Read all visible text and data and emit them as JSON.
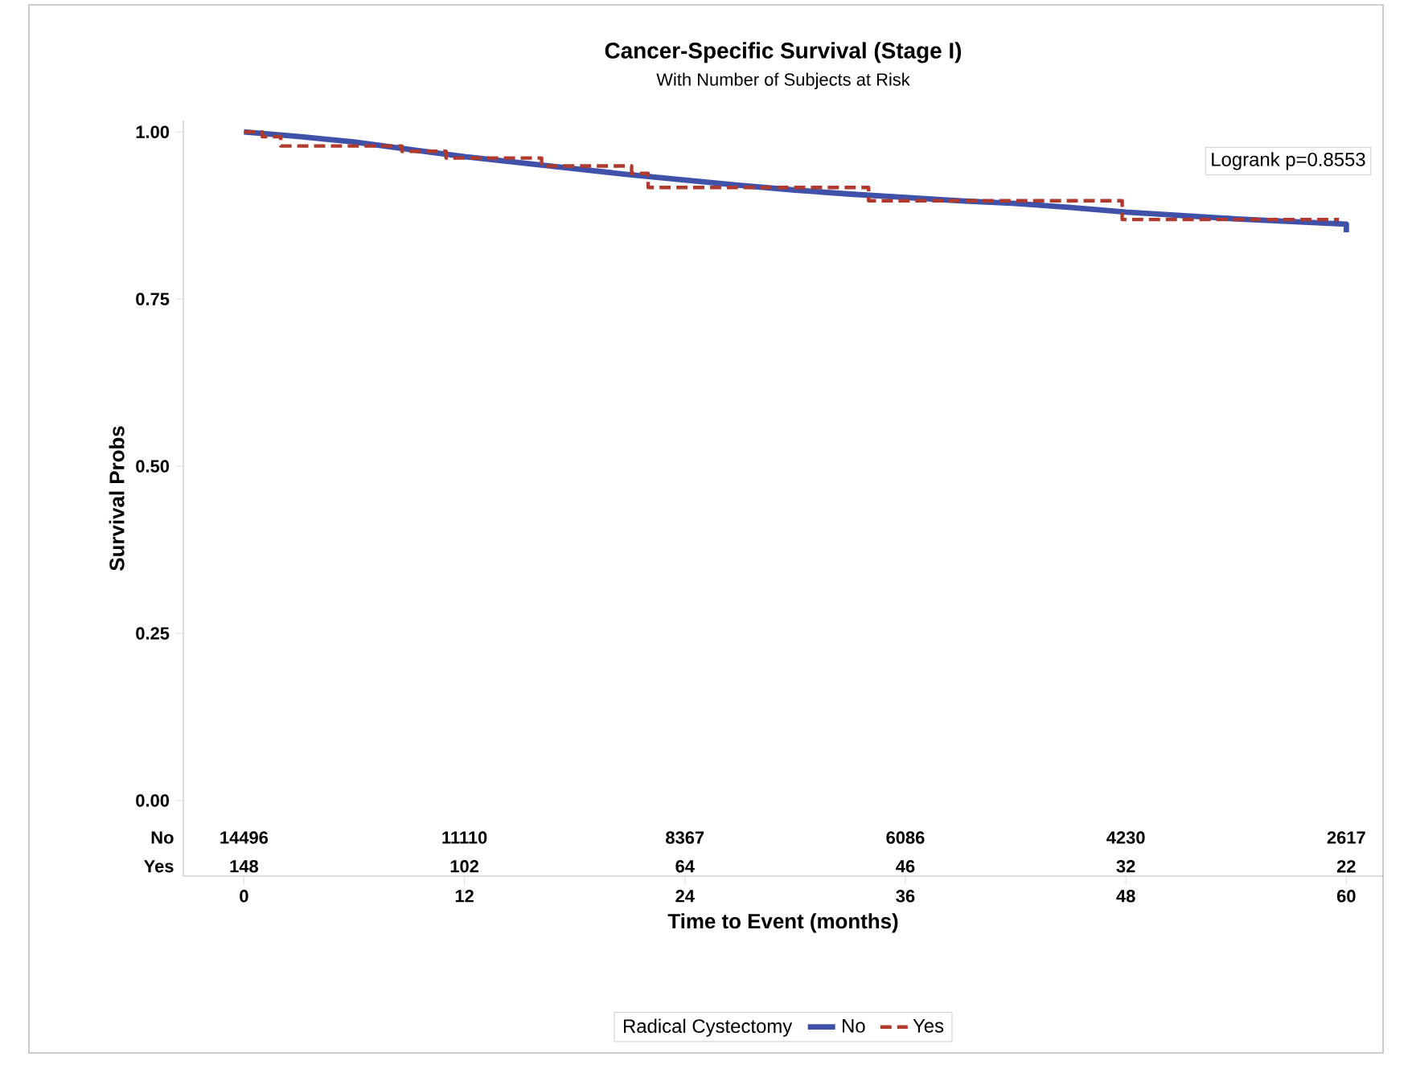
{
  "chart_data": {
    "type": "step",
    "title": "Cancer-Specific Survival (Stage I)",
    "subtitle": "With Number of Subjects at Risk",
    "xlabel": "Time to Event (months)",
    "ylabel": "Survival Probs",
    "legend_title": "Radical Cystectomy",
    "legend": "bottom",
    "grid": false,
    "xlim": [
      -3.3,
      62
    ],
    "ylim": [
      -0.113,
      1.017
    ],
    "xticks": [
      0,
      12,
      24,
      36,
      48,
      60
    ],
    "yticks": [
      {
        "value": 0,
        "label": "0.00"
      },
      {
        "value": 0.25,
        "label": "0.25"
      },
      {
        "value": 0.5,
        "label": "0.50"
      },
      {
        "value": 0.75,
        "label": "0.75"
      },
      {
        "value": 1,
        "label": "1.00"
      }
    ],
    "series": [
      {
        "name": "No",
        "type": "line",
        "color": "#3f51a8",
        "line_style": "solid",
        "x": [
          0,
          3,
          6,
          9,
          12,
          15,
          18,
          21,
          24,
          27,
          30,
          33,
          36,
          39,
          42,
          45,
          48,
          51,
          54,
          57,
          60,
          60
        ],
        "values": [
          1.0,
          0.993,
          0.985,
          0.974,
          0.963,
          0.954,
          0.945,
          0.936,
          0.928,
          0.92,
          0.913,
          0.907,
          0.902,
          0.897,
          0.893,
          0.887,
          0.88,
          0.875,
          0.87,
          0.866,
          0.862,
          0.85
        ]
      },
      {
        "name": "Yes",
        "color": "#b03a2e",
        "line_style": "dashed",
        "x": [
          0,
          1,
          2,
          8.6,
          11,
          16.2,
          21.1,
          22,
          34,
          47.8,
          59.6
        ],
        "values": [
          1.0,
          0.993,
          0.979,
          0.971,
          0.961,
          0.949,
          0.938,
          0.917,
          0.897,
          0.869,
          0.869
        ]
      }
    ],
    "annotations": [
      "No",
      "14496",
      "11110",
      "8367",
      "6086",
      "4230",
      "2617",
      "Yes",
      "148",
      "102",
      "64",
      "46",
      "32",
      "22",
      "Logrank p=0.8553"
    ]
  }
}
